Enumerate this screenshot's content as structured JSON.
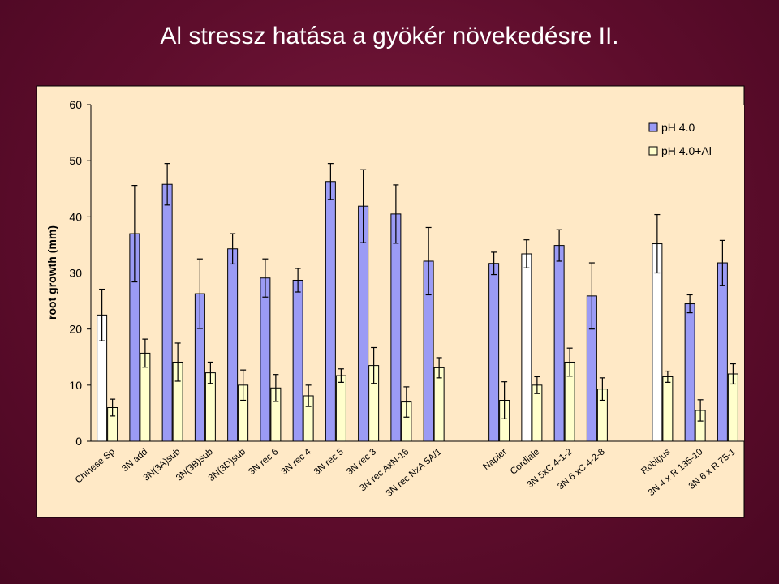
{
  "slide": {
    "title": "Al stressz hatása a gyökér növekedésre II."
  },
  "colors": {
    "background": "#5e0d2c",
    "chart_area": "#ffe9c6",
    "plot_area": "#ffe9c6",
    "series_ph": "#9b9bf5",
    "series_phal": "#ffffcc",
    "highlight": "#ffffff"
  },
  "chart_data": {
    "type": "bar",
    "title": "",
    "xlabel": "",
    "ylabel": "root growth (mm)",
    "ylim": [
      0,
      60
    ],
    "yticks": [
      "0",
      "10",
      "20",
      "30",
      "40",
      "50",
      "60"
    ],
    "grid": false,
    "legend_position": "top-right",
    "categories": [
      "Chinese Sp",
      "3N add",
      "3N(3A)sub",
      "3N(3B)sub",
      "3N(3D)sub",
      "3N rec 6",
      "3N rec 4",
      "3N rec 5",
      "3N rec 3",
      "3N rec AxN-16",
      "3N rec NxA 5A/1",
      "",
      "Napier",
      "Cordiale",
      "3N 5xC 4-1-2",
      "3N 6 xC 4-2-8",
      "",
      "Robigus",
      "3N 4 x R 135-10",
      "3N 6 x R 75-1"
    ],
    "highlighted_first_bar": [
      "Chinese Sp",
      "Cordiale",
      "Robigus"
    ],
    "series": [
      {
        "name": "pH 4.0",
        "values": [
          22.5,
          37.0,
          45.8,
          26.3,
          34.3,
          29.1,
          28.7,
          46.3,
          41.9,
          40.5,
          32.1,
          null,
          31.7,
          33.4,
          34.9,
          25.9,
          null,
          35.2,
          24.5,
          31.8
        ],
        "errors": [
          4.6,
          8.6,
          3.7,
          6.2,
          2.7,
          3.4,
          2.1,
          3.2,
          6.5,
          5.2,
          6.0,
          null,
          2.0,
          2.5,
          2.8,
          5.9,
          null,
          5.2,
          1.6,
          4.0
        ]
      },
      {
        "name": "pH 4.0+Al",
        "values": [
          6.0,
          15.7,
          14.1,
          12.2,
          10.0,
          9.5,
          8.1,
          11.7,
          13.5,
          7.0,
          13.1,
          null,
          7.3,
          10.0,
          14.1,
          9.3,
          null,
          11.5,
          5.5,
          12.0
        ],
        "errors": [
          1.5,
          2.5,
          3.4,
          1.9,
          2.7,
          2.4,
          1.9,
          1.2,
          3.2,
          2.7,
          1.8,
          null,
          3.3,
          1.5,
          2.5,
          2.0,
          null,
          1.0,
          1.9,
          1.8
        ]
      }
    ]
  }
}
